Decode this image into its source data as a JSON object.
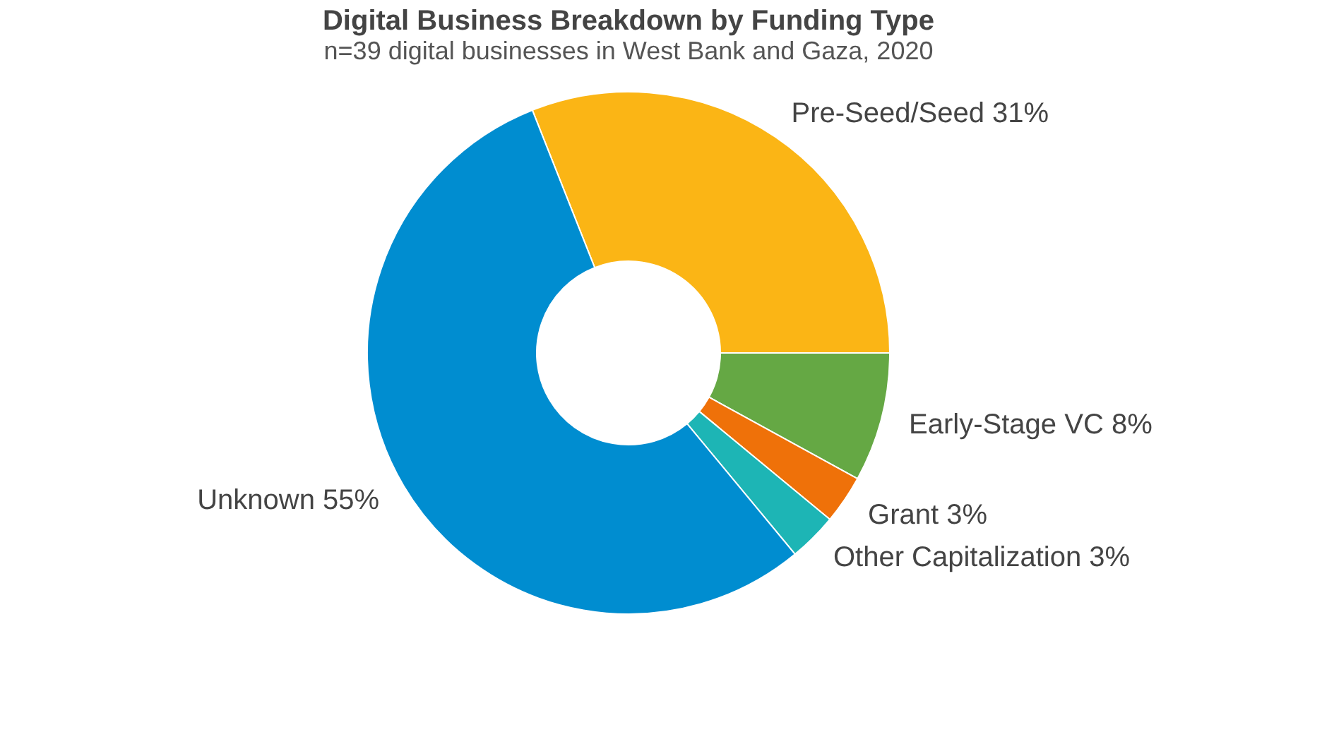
{
  "chart_data": {
    "type": "donut",
    "title": "Digital Business Breakdown by Funding Type",
    "subtitle": "n=39 digital businesses in West Bank and Gaza, 2020",
    "categories": [
      "Pre-Seed/Seed",
      "Early-Stage VC",
      "Grant",
      "Other Capitalization",
      "Unknown"
    ],
    "values": [
      31,
      8,
      3,
      3,
      55
    ],
    "value_labels": [
      "31%",
      "8%",
      "3%",
      "3%",
      "55%"
    ],
    "colors": [
      "#fbb515",
      "#65a844",
      "#ef7109",
      "#1db5b5",
      "#008dd0"
    ],
    "legend": false
  }
}
